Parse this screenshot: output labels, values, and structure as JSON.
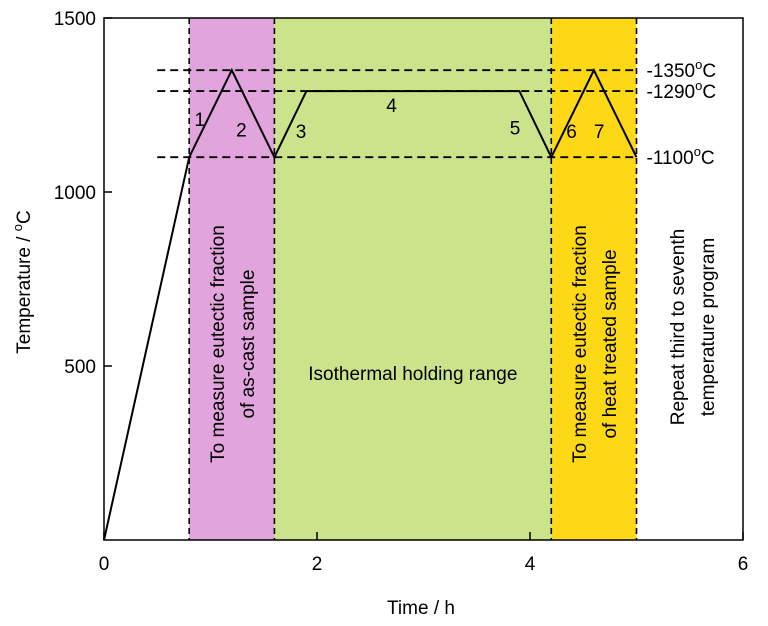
{
  "chart_data": {
    "type": "line",
    "xlabel": "Time / h",
    "ylabel": "Temperature / °C",
    "xlim": [
      0,
      6
    ],
    "ylim": [
      0,
      1500
    ],
    "xticks": [
      "0",
      "2",
      "4",
      "6"
    ],
    "yticks": [
      "500",
      "1000",
      "1500"
    ],
    "grid": false,
    "series": [
      {
        "points": [
          [
            0,
            0
          ],
          [
            0.8,
            1100
          ],
          [
            1.2,
            1350
          ],
          [
            1.6,
            1100
          ],
          [
            1.9,
            1290
          ],
          [
            3.9,
            1290
          ],
          [
            4.2,
            1100
          ],
          [
            4.6,
            1350
          ],
          [
            5.0,
            1100
          ]
        ]
      }
    ],
    "regions": [
      {
        "x0": 0.8,
        "x1": 1.6,
        "color": "#e2a4dc",
        "label_lines": [
          "To measure eutectic fraction",
          "of as-cast sample"
        ]
      },
      {
        "x0": 1.6,
        "x1": 4.2,
        "color": "#cbe48c",
        "label_lines": [
          "Isothermal holding range"
        ]
      },
      {
        "x0": 4.2,
        "x1": 5.0,
        "color": "#fdd817",
        "label_lines": [
          "To measure eutectic fraction",
          "of heat treated sample"
        ]
      }
    ],
    "reference_lines": [
      {
        "y": 1350,
        "label": "-1350",
        "unit": "C"
      },
      {
        "y": 1290,
        "label": "-1290",
        "unit": "C"
      },
      {
        "y": 1100,
        "label": "-1100",
        "unit": "C"
      }
    ],
    "vertical_dashed_x": [
      0.8,
      1.6,
      4.2,
      5.0
    ],
    "step_labels": [
      {
        "text": "1",
        "x": 0.9,
        "y": 1210
      },
      {
        "text": "2",
        "x": 1.29,
        "y": 1180
      },
      {
        "text": "3",
        "x": 1.85,
        "y": 1175
      },
      {
        "text": "4",
        "x": 2.7,
        "y": 1250
      },
      {
        "text": "5",
        "x": 3.86,
        "y": 1185
      },
      {
        "text": "6",
        "x": 4.39,
        "y": 1175
      },
      {
        "text": "7",
        "x": 4.65,
        "y": 1175
      }
    ],
    "side_note_lines": [
      "Repeat third  to seventh",
      "temperature program"
    ],
    "degree_symbol": "o",
    "line_color": "#000000"
  }
}
